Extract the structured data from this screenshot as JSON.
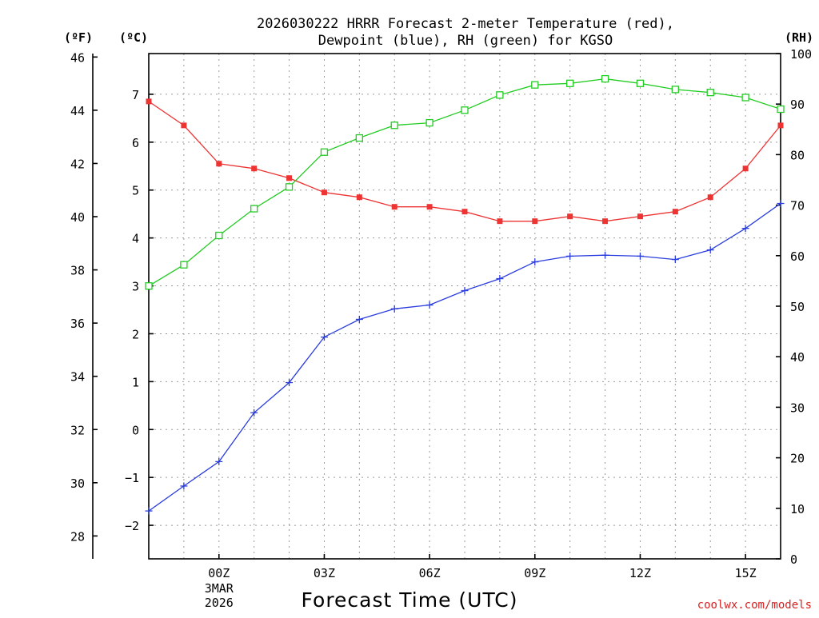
{
  "chart_data": {
    "type": "line",
    "title": "2026030222 HRRR Forecast 2-meter Temperature (red),",
    "subtitle": "Dewpoint (blue), RH (green) for KGSO",
    "xlabel": "Forecast Time (UTC)",
    "credit": "coolwx.com/models",
    "unit_labels": {
      "fahrenheit": "(ºF)",
      "celsius": "(ºC)",
      "rh": "(RH)"
    },
    "x_hours": [
      -2,
      -1,
      0,
      1,
      2,
      3,
      4,
      5,
      6,
      7,
      8,
      9,
      10,
      11,
      12,
      13,
      14,
      15,
      16
    ],
    "xlim": [
      -2,
      16
    ],
    "x_ticks": [
      {
        "hour": 0,
        "label": "00Z",
        "date_line1": "3MAR",
        "date_line2": "2026"
      },
      {
        "hour": 3,
        "label": "03Z"
      },
      {
        "hour": 6,
        "label": "06Z"
      },
      {
        "hour": 9,
        "label": "09Z"
      },
      {
        "hour": 12,
        "label": "12Z"
      },
      {
        "hour": 15,
        "label": "15Z"
      }
    ],
    "celsius_axis": {
      "ylim": [
        -2.7,
        7.85
      ],
      "ticks": [
        -2,
        -1,
        0,
        1,
        2,
        3,
        4,
        5,
        6,
        7
      ]
    },
    "fahrenheit_axis": {
      "ylim": [
        27.14,
        46.13
      ],
      "ticks": [
        28,
        30,
        32,
        34,
        36,
        38,
        40,
        42,
        44,
        46
      ]
    },
    "rh_axis": {
      "ylim": [
        0,
        100
      ],
      "ticks": [
        0,
        10,
        20,
        30,
        40,
        50,
        60,
        70,
        80,
        90,
        100
      ]
    },
    "series": [
      {
        "name": "Temperature",
        "axis": "celsius",
        "color": "#ee3333",
        "marker": "filled-square",
        "values": [
          6.85,
          6.35,
          5.55,
          5.45,
          5.25,
          4.95,
          4.85,
          4.65,
          4.65,
          4.55,
          4.35,
          4.35,
          4.45,
          4.35,
          4.45,
          4.55,
          4.85,
          5.45,
          6.35
        ]
      },
      {
        "name": "Dewpoint",
        "axis": "celsius",
        "color": "#2a3ddd",
        "marker": "plus",
        "values": [
          -1.7,
          -1.18,
          -0.67,
          0.35,
          0.98,
          1.93,
          2.3,
          2.52,
          2.6,
          2.9,
          3.15,
          3.5,
          3.62,
          3.64,
          3.62,
          3.55,
          3.75,
          4.2,
          4.72
        ]
      },
      {
        "name": "RH",
        "axis": "rh",
        "color": "#22cc22",
        "marker": "open-square",
        "values": [
          54.0,
          58.2,
          64.0,
          69.3,
          73.6,
          80.5,
          83.3,
          85.8,
          86.3,
          88.8,
          91.8,
          93.8,
          94.1,
          95.0,
          94.1,
          92.9,
          92.3,
          91.3,
          89.0
        ]
      }
    ],
    "grid": true
  }
}
